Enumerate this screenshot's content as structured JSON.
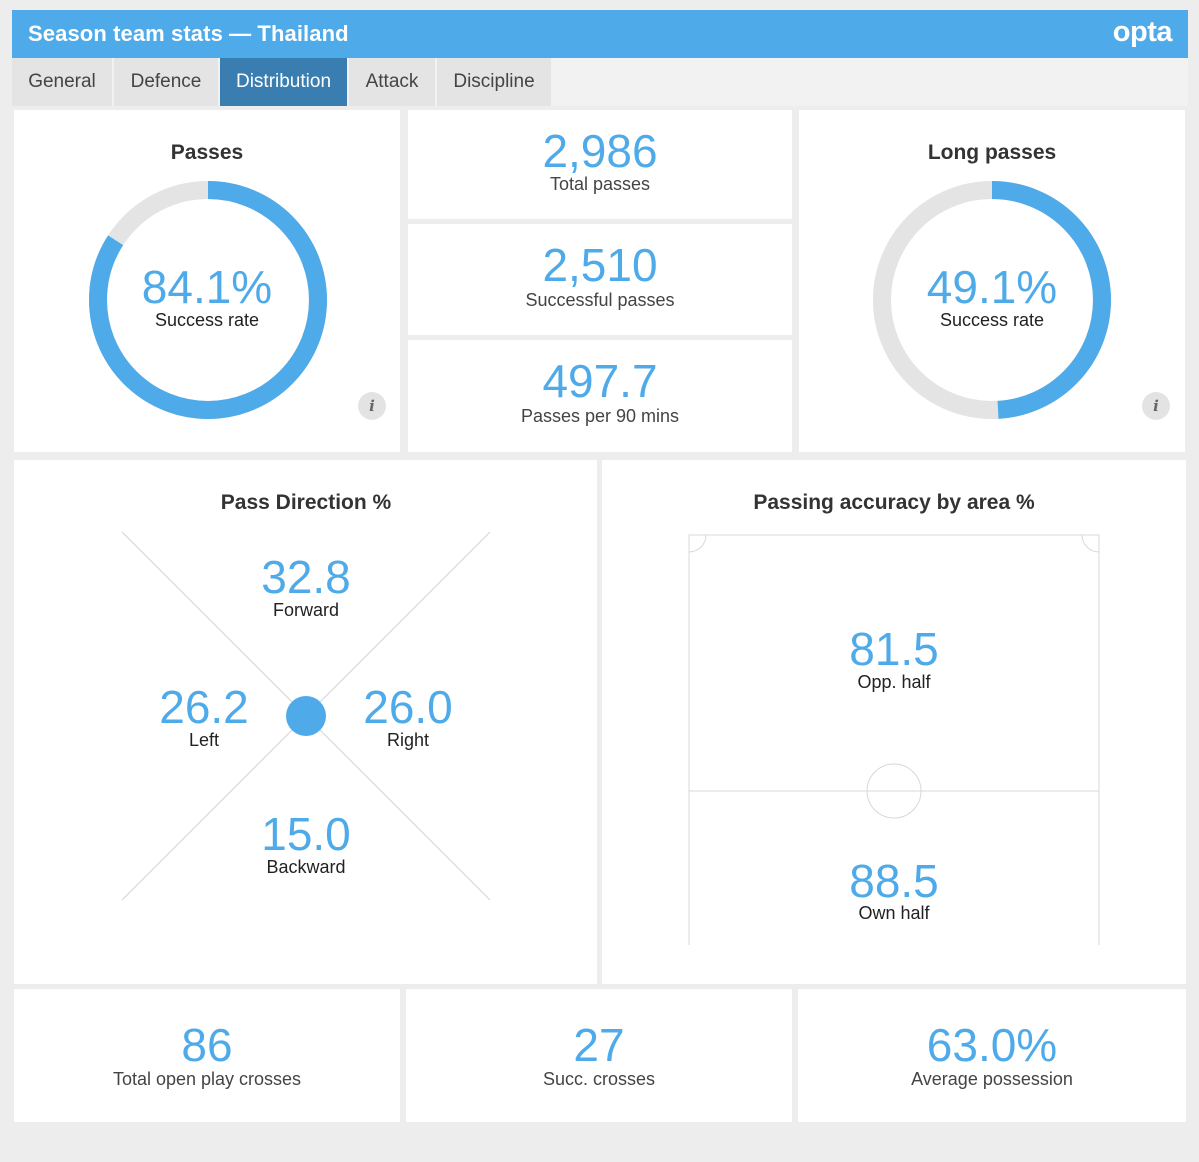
{
  "header": {
    "title": "Season team stats — Thailand",
    "logo": "opta"
  },
  "tabs": [
    {
      "label": "General"
    },
    {
      "label": "Defence"
    },
    {
      "label": "Distribution"
    },
    {
      "label": "Attack"
    },
    {
      "label": "Discipline"
    }
  ],
  "active_tab": "Distribution",
  "colors": {
    "accent": "#4eaae9",
    "tab_active": "#3a7db0",
    "track": "#e4e4e4"
  },
  "passes": {
    "title": "Passes",
    "value": "84.1%",
    "label": "Success rate",
    "fraction": 0.841,
    "info_icon": "i"
  },
  "stats": {
    "total_passes": {
      "value": "2,986",
      "label": "Total passes"
    },
    "successful_passes": {
      "value": "2,510",
      "label": "Successful passes"
    },
    "passes_per_90": {
      "value": "497.7",
      "label": "Passes per 90 mins"
    }
  },
  "long_passes": {
    "title": "Long passes",
    "value": "49.1%",
    "label": "Success rate",
    "fraction": 0.491,
    "info_icon": "i"
  },
  "pass_direction": {
    "title": "Pass Direction %",
    "forward": {
      "value": "32.8",
      "label": "Forward"
    },
    "left": {
      "value": "26.2",
      "label": "Left"
    },
    "right": {
      "value": "26.0",
      "label": "Right"
    },
    "backward": {
      "value": "15.0",
      "label": "Backward"
    }
  },
  "accuracy_by_area": {
    "title": "Passing accuracy by area %",
    "opp_half": {
      "value": "81.5",
      "label": "Opp. half"
    },
    "own_half": {
      "value": "88.5",
      "label": "Own half"
    }
  },
  "bottom": {
    "crosses": {
      "value": "86",
      "label": "Total open play crosses"
    },
    "succ_crosses": {
      "value": "27",
      "label": "Succ. crosses"
    },
    "possession": {
      "value": "63.0%",
      "label": "Average possession"
    }
  }
}
